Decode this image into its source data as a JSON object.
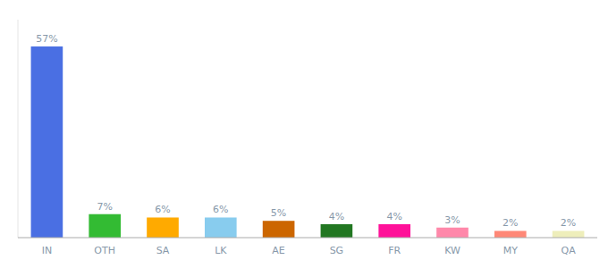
{
  "chart_data": {
    "type": "bar",
    "categories": [
      "IN",
      "OTH",
      "SA",
      "LK",
      "AE",
      "SG",
      "FR",
      "KW",
      "MY",
      "QA"
    ],
    "values": [
      57,
      7,
      6,
      6,
      5,
      4,
      4,
      3,
      2,
      2
    ],
    "value_labels": [
      "57%",
      "7%",
      "6%",
      "6%",
      "5%",
      "4%",
      "4%",
      "3%",
      "2%",
      "2%"
    ],
    "colors": [
      "#4a6fe3",
      "#33bb33",
      "#ffaa00",
      "#88ccee",
      "#cc6600",
      "#227722",
      "#ff1199",
      "#ff88aa",
      "#ff8877",
      "#eeeebb"
    ],
    "ylim": [
      0,
      65
    ],
    "data_labels": true,
    "tick_labels": "x",
    "grid": false
  }
}
